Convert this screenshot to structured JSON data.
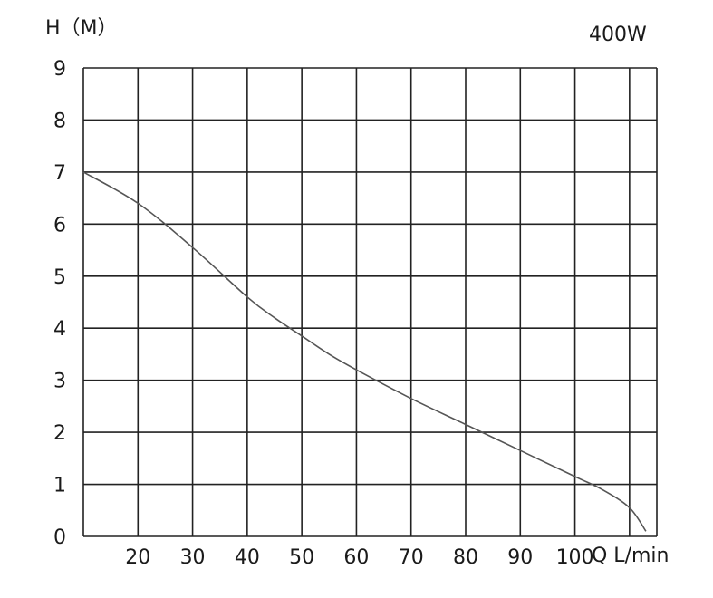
{
  "chart_data": {
    "type": "line",
    "title": "400W",
    "ylabel": "H（M）",
    "xlabel": "Q L/min",
    "xlim": [
      10,
      115
    ],
    "ylim": [
      0,
      9
    ],
    "grid": true,
    "x_ticks": [
      20,
      30,
      40,
      50,
      60,
      70,
      80,
      90,
      100
    ],
    "x_tick_labels": [
      "20",
      "30",
      "40",
      "50",
      "60",
      "70",
      "80",
      "90",
      "100"
    ],
    "y_ticks": [
      0,
      1,
      2,
      3,
      4,
      5,
      6,
      7,
      8,
      9
    ],
    "y_tick_labels": [
      "0",
      "1",
      "2",
      "3",
      "4",
      "5",
      "6",
      "7",
      "8",
      "9"
    ],
    "series": [
      {
        "x": [
          10,
          20,
          30,
          40,
          45,
          50,
          55,
          60,
          70,
          80,
          90,
          100,
          105,
          110,
          113
        ],
        "y": [
          7.0,
          6.4,
          5.55,
          4.6,
          4.2,
          3.85,
          3.5,
          3.2,
          2.65,
          2.15,
          1.65,
          1.15,
          0.9,
          0.55,
          0.1
        ]
      }
    ],
    "colors": {
      "curve": "#555555",
      "grid": "#222222",
      "text": "#1a1a1a"
    }
  }
}
